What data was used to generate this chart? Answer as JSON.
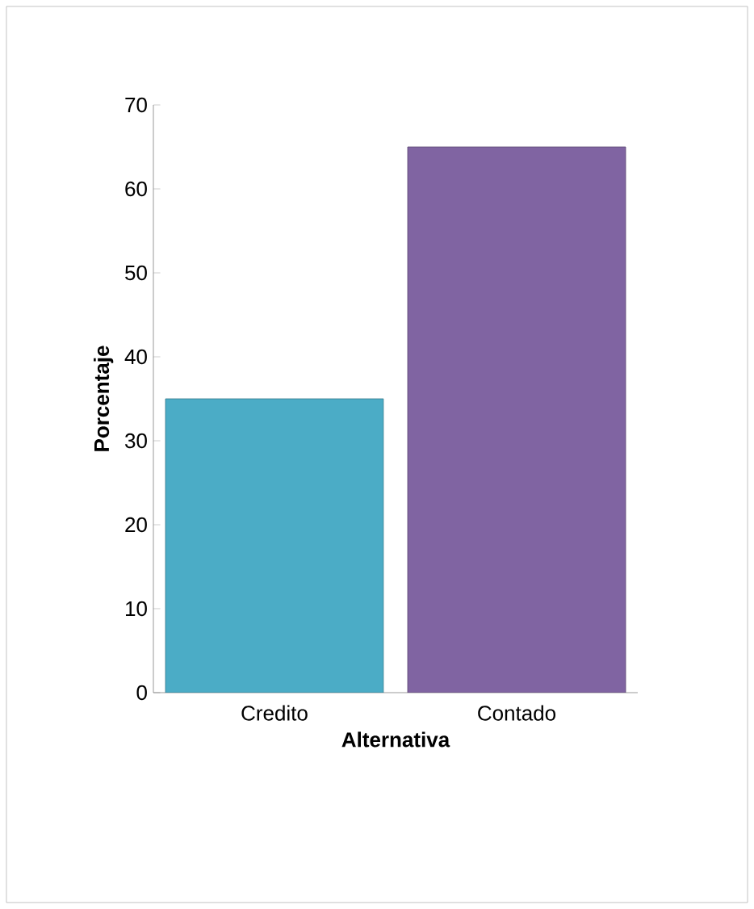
{
  "chart_data": {
    "type": "bar",
    "xlabel": "Alternativa",
    "ylabel": "Porcentaje",
    "categories": [
      "Credito",
      "Contado"
    ],
    "values": [
      35,
      65
    ],
    "colors": [
      "#4bacc6",
      "#8064a2"
    ],
    "ylim": [
      0,
      70
    ],
    "yticks": [
      0,
      10,
      20,
      30,
      40,
      50,
      60,
      70
    ],
    "grid": false
  }
}
